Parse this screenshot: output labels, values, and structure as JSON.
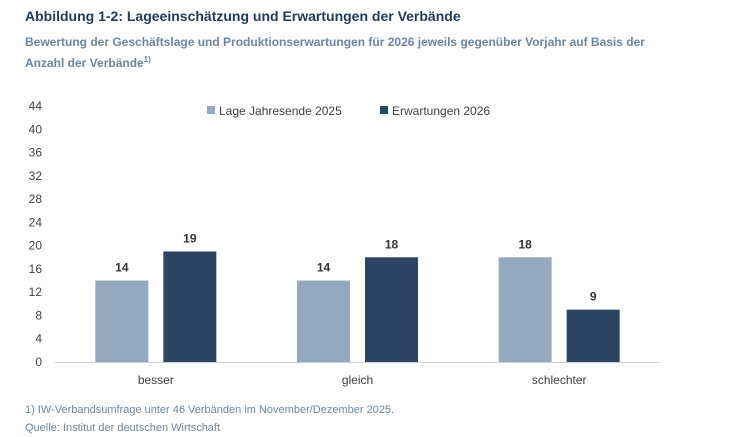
{
  "title": "Abbildung 1-2: Lageeinschätzung und Erwartungen der Verbände",
  "subtitle": "Bewertung der Geschäftslage und Produktionserwartungen für 2026 jeweils gegenüber Vorjahr auf Basis der Anzahl der Verbände",
  "subtitle_sup": "1)",
  "footnote": "1) IW-Verbandsumfrage unter 46 Verbänden im November/Dezember 2025.",
  "source": "Quelle: Institut der deutschen Wirtschaft",
  "colors": {
    "series1": "#94a9bf",
    "series2": "#2b4563"
  },
  "chart_data": {
    "type": "bar",
    "categories": [
      "besser",
      "gleich",
      "schlechter"
    ],
    "series": [
      {
        "name": "Lage Jahresende 2025",
        "values": [
          14,
          14,
          18
        ]
      },
      {
        "name": "Erwartungen 2026",
        "values": [
          19,
          18,
          9
        ]
      }
    ],
    "yticks": [
      0,
      4,
      8,
      12,
      16,
      20,
      24,
      28,
      32,
      36,
      40,
      44
    ],
    "ylim": [
      0,
      44
    ],
    "xlabel": "",
    "ylabel": "",
    "legend": "top-center",
    "grid": false
  }
}
